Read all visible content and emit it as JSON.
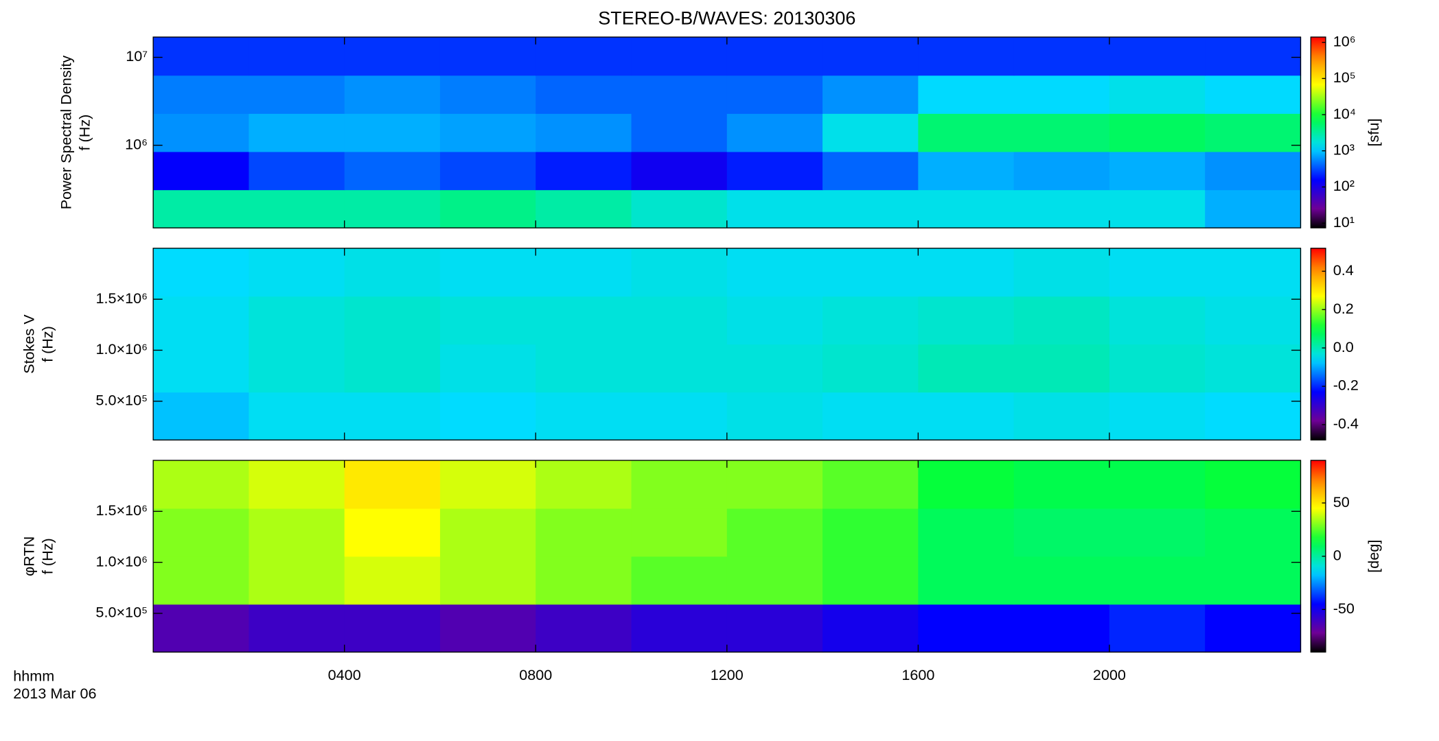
{
  "chart_data": [
    {
      "type": "heatmap",
      "title": "STEREO-B/WAVES: 20130306",
      "ylabel": [
        "Power Spectral Density",
        "f (Hz)"
      ],
      "ylog": true,
      "ylim": [
        115000,
        17000000
      ],
      "yticks": [
        {
          "value": 1000000,
          "label": "10⁶"
        },
        {
          "value": 10000000,
          "label": "10⁷"
        }
      ],
      "z": [
        [
          3000,
          3000,
          3000,
          4000,
          3000,
          2000,
          1500,
          1500,
          1500,
          1500,
          1500,
          800
        ],
        [
          150,
          300,
          400,
          300,
          200,
          120,
          200,
          400,
          800,
          700,
          800,
          600
        ],
        [
          600,
          800,
          800,
          700,
          600,
          400,
          600,
          1500,
          5000,
          5000,
          6000,
          5000
        ],
        [
          500,
          500,
          600,
          500,
          400,
          400,
          400,
          600,
          1200,
          1200,
          1500,
          1200
        ],
        [
          250,
          250,
          250,
          250,
          250,
          250,
          250,
          250,
          250,
          250,
          250,
          250
        ]
      ],
      "colorbar": {
        "log": true,
        "lim": [
          7.4,
          1400000
        ],
        "ticks": [
          {
            "value": 10,
            "label": "10¹"
          },
          {
            "value": 100,
            "label": "10²"
          },
          {
            "value": 1000,
            "label": "10³"
          },
          {
            "value": 10000,
            "label": "10⁴"
          },
          {
            "value": 100000,
            "label": "10⁵"
          },
          {
            "value": 1000000,
            "label": "10⁶"
          }
        ],
        "label": "[sfu]"
      }
    },
    {
      "type": "heatmap",
      "ylabel": [
        "Stokes V",
        "f (Hz)"
      ],
      "ylim": [
        120000,
        2000000
      ],
      "yticks": [
        {
          "value": 500000,
          "label": "5.0×10⁵"
        },
        {
          "value": 1000000,
          "label": "1.0×10⁶"
        },
        {
          "value": 1500000,
          "label": "1.5×10⁶"
        }
      ],
      "z": [
        [
          -0.08,
          -0.05,
          -0.05,
          -0.06,
          -0.05,
          -0.05,
          -0.04,
          -0.05,
          -0.05,
          -0.04,
          -0.05,
          -0.06
        ],
        [
          -0.05,
          -0.03,
          -0.02,
          -0.04,
          -0.03,
          -0.03,
          -0.03,
          -0.02,
          0.0,
          0.0,
          -0.02,
          -0.03
        ],
        [
          -0.05,
          -0.03,
          -0.02,
          -0.03,
          -0.03,
          -0.03,
          -0.04,
          -0.03,
          -0.02,
          -0.01,
          -0.03,
          -0.04
        ],
        [
          -0.06,
          -0.05,
          -0.04,
          -0.05,
          -0.05,
          -0.04,
          -0.05,
          -0.05,
          -0.05,
          -0.04,
          -0.05,
          -0.05
        ]
      ],
      "colorbar": {
        "lim": [
          -0.48,
          0.52
        ],
        "ticks": [
          -0.4,
          -0.2,
          {
            "value": 0,
            "label": "0.0"
          },
          0.2,
          0.4
        ]
      }
    },
    {
      "type": "heatmap",
      "ylabel": [
        "φRTN",
        "f (Hz)"
      ],
      "ylim": [
        120000,
        2000000
      ],
      "yticks": [
        {
          "value": 500000,
          "label": "5.0×10⁵"
        },
        {
          "value": 1000000,
          "label": "1.0×10⁶"
        },
        {
          "value": 1500000,
          "label": "1.5×10⁶"
        }
      ],
      "z": [
        [
          -65,
          -60,
          -60,
          -65,
          -60,
          -55,
          -55,
          -50,
          -45,
          -45,
          -40,
          -45
        ],
        [
          30,
          35,
          40,
          35,
          30,
          25,
          25,
          20,
          10,
          10,
          10,
          10
        ],
        [
          30,
          35,
          45,
          35,
          30,
          30,
          25,
          20,
          10,
          8,
          8,
          10
        ],
        [
          35,
          40,
          50,
          40,
          35,
          30,
          30,
          25,
          15,
          12,
          12,
          15
        ]
      ],
      "colorbar": {
        "lim": [
          -90,
          90
        ],
        "ticks": [
          -50,
          0,
          50
        ],
        "label": "[deg]"
      },
      "xlim": [
        0,
        24
      ],
      "xticks": [
        {
          "value": 4,
          "label": "0400"
        },
        {
          "value": 8,
          "label": "0800"
        },
        {
          "value": 12,
          "label": "1200"
        },
        {
          "value": 16,
          "label": "1600"
        },
        {
          "value": 20,
          "label": "2000"
        }
      ],
      "xlabel": [
        "hhmm",
        "2013 Mar 06"
      ]
    }
  ]
}
